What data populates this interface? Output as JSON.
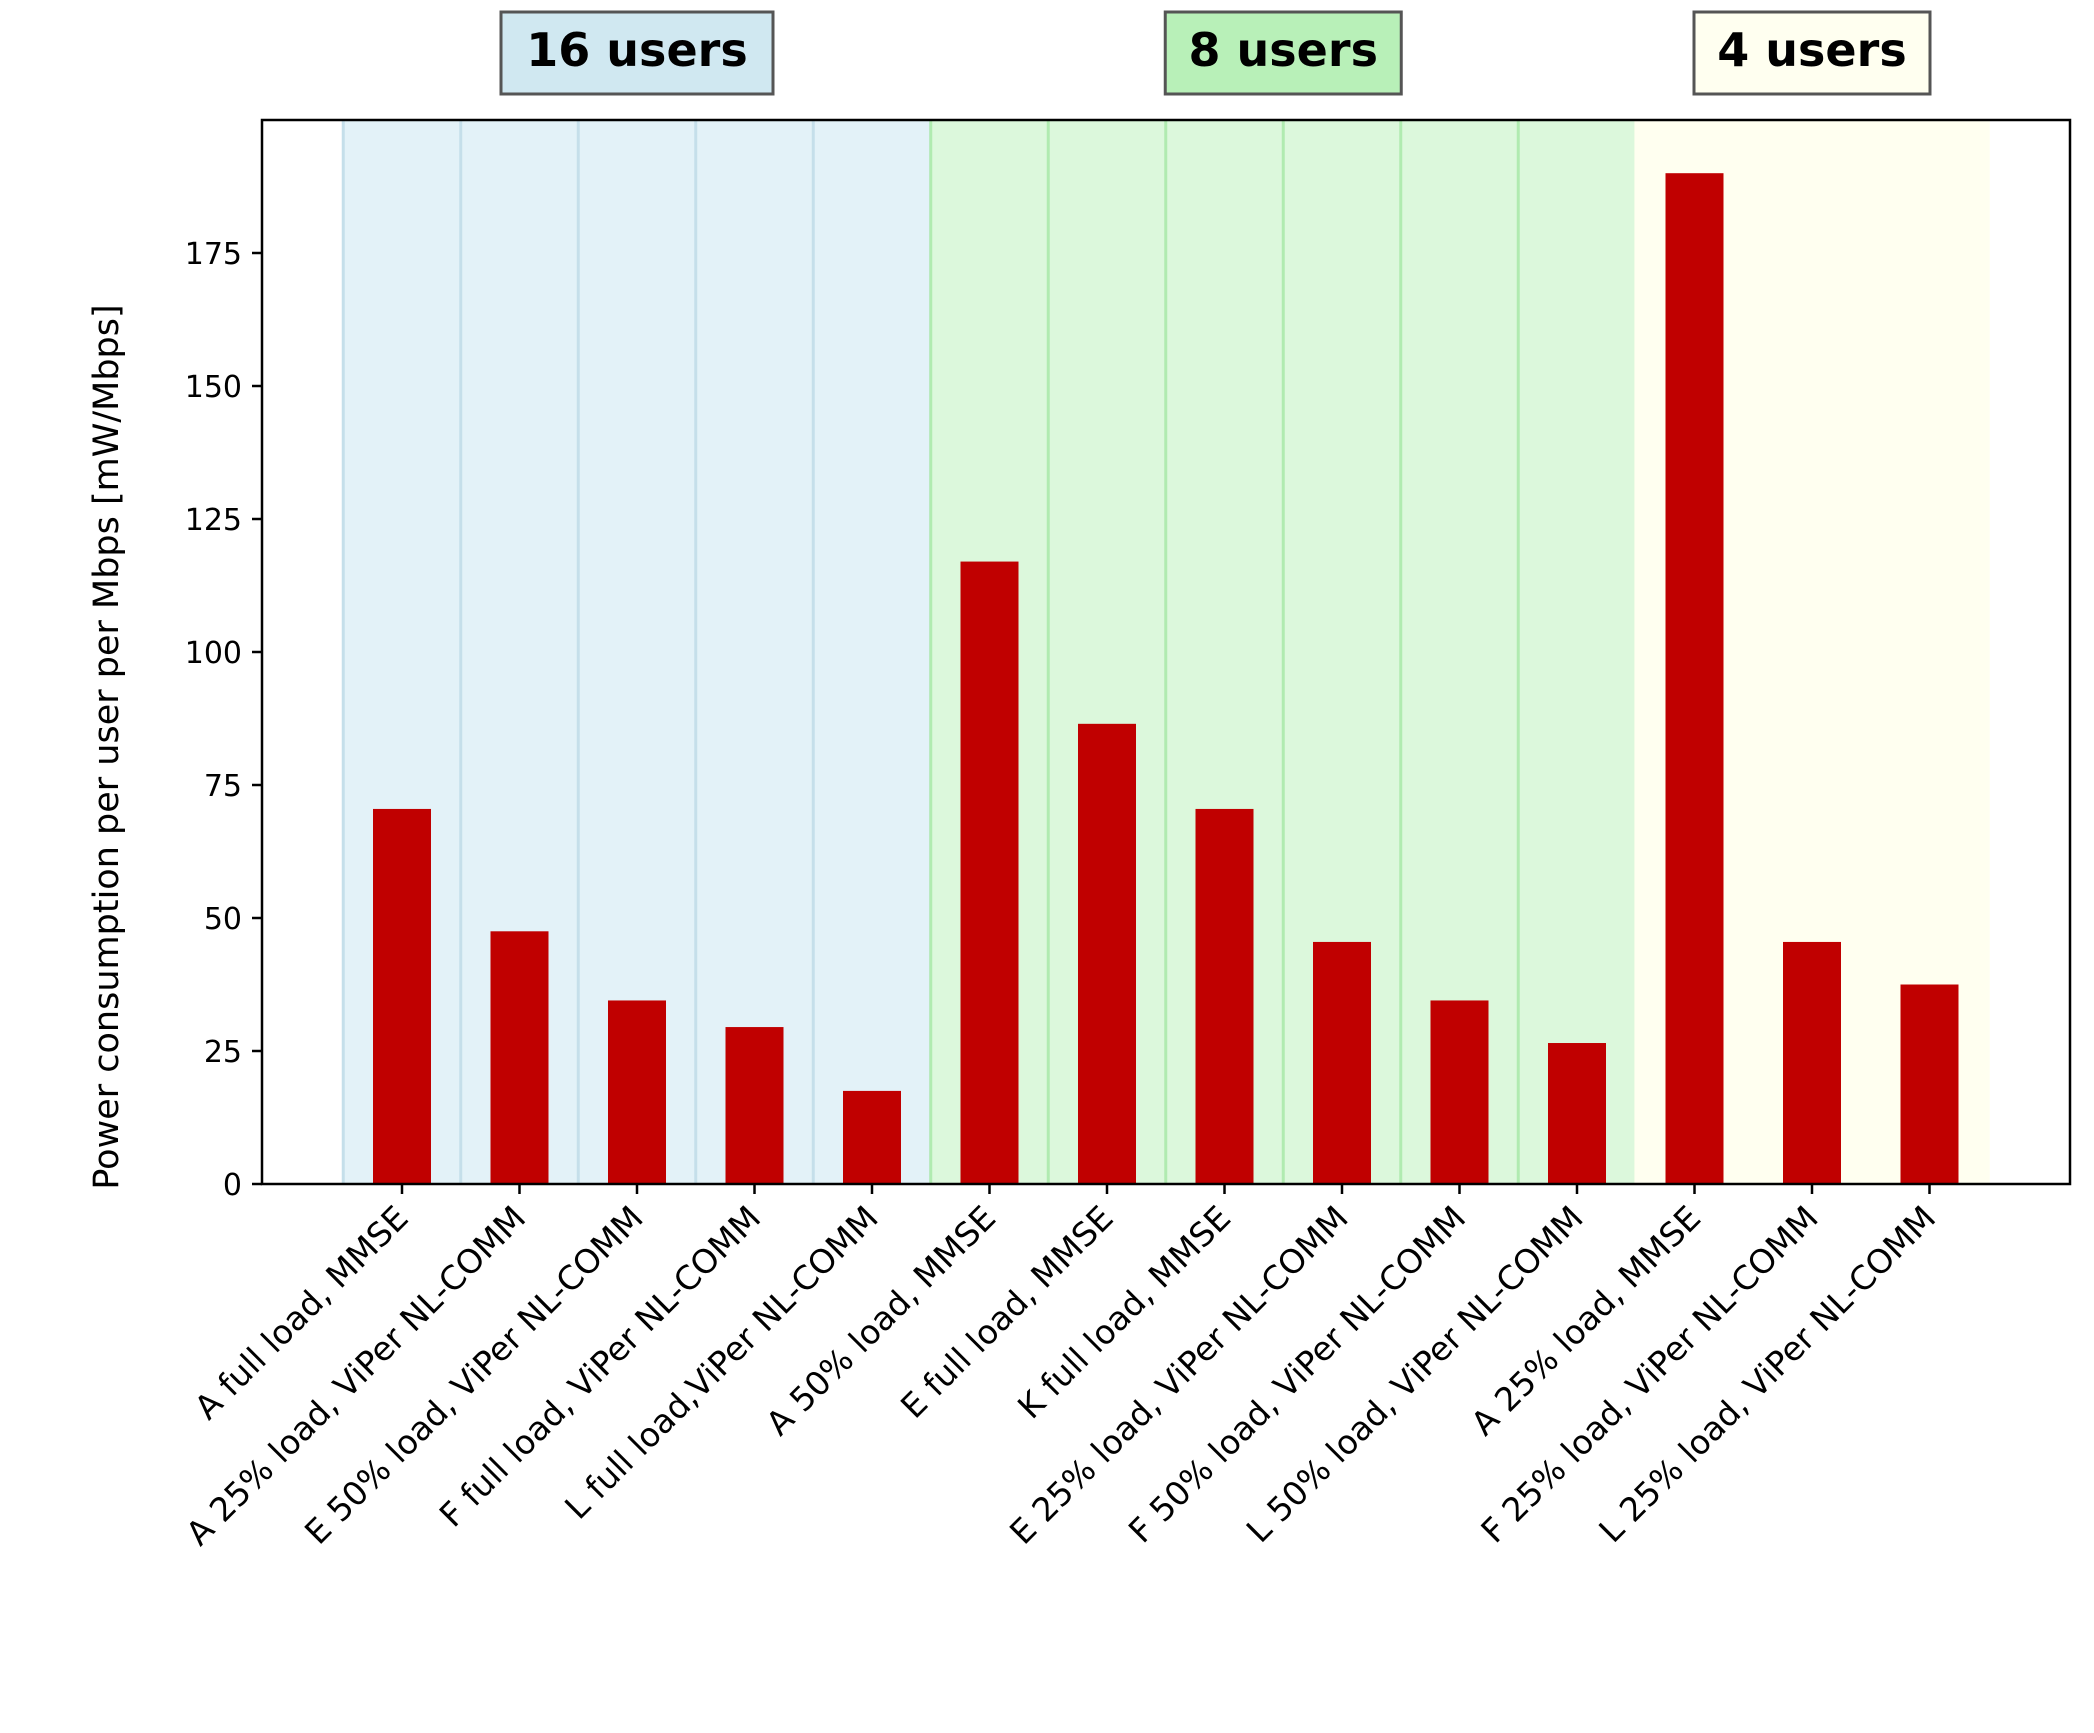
{
  "chart_data": {
    "type": "bar",
    "title": "",
    "xlabel": "",
    "ylabel": "Power consumption per user per Mbps [mW/Mbps]",
    "ylim": [
      0,
      200
    ],
    "yticks": [
      0,
      25,
      50,
      75,
      100,
      125,
      150,
      175
    ],
    "grid": false,
    "bar_color": "#c00000",
    "categories": [
      "A full load, MMSE",
      "A 25% load, ViPer NL-COMM",
      "E 50% load, ViPer NL-COMM",
      "F full load, ViPer NL-COMM",
      "L full load,ViPer NL-COMM",
      "A 50% load, MMSE",
      "E full load, MMSE",
      "K full load, MMSE",
      "E 25% load, ViPer NL-COMM",
      "F 50% load, ViPer NL-COMM",
      "L 50% load, ViPer NL-COMM",
      "A 25% load, MMSE",
      "F 25% load, ViPer NL-COMM",
      "L 25% load, ViPer NL-COMM"
    ],
    "values": [
      70.5,
      47.5,
      34.5,
      29.5,
      17.5,
      117,
      86.5,
      70.5,
      45.5,
      34.5,
      26.5,
      190,
      45.5,
      37.5
    ],
    "groups": [
      {
        "label": "16 users",
        "start": 0,
        "end": 4,
        "fill": "#e3f2f8",
        "line": "#c5dfea",
        "box_fill": "#d0e8f1"
      },
      {
        "label": "8 users",
        "start": 5,
        "end": 10,
        "fill": "#dcf8dc",
        "line": "#b0ebb0",
        "box_fill": "#b8f0b8"
      },
      {
        "label": "4 users",
        "start": 11,
        "end": 13,
        "fill": "#fffff0",
        "line": "#fffff0",
        "box_fill": "#fffff0"
      }
    ]
  }
}
